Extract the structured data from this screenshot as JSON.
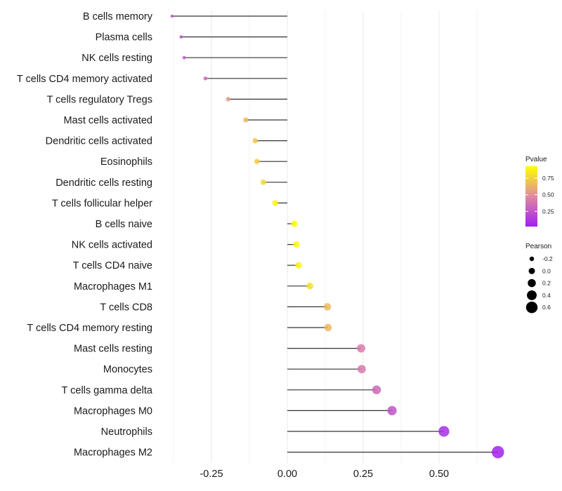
{
  "chart_data": {
    "type": "lollipop",
    "title": "",
    "xlabel": "",
    "ylabel": "",
    "xlim": [
      -0.38,
      0.7
    ],
    "x_ticks": [
      -0.25,
      0.0,
      0.25,
      0.5
    ],
    "x_tick_labels": [
      "-0.25",
      "0.00",
      "0.25",
      "0.50"
    ],
    "grid": true,
    "categories": [
      "B cells memory",
      "Plasma cells",
      "NK cells resting",
      "T cells CD4 memory activated",
      "T cells regulatory  Tregs ",
      "Mast cells activated",
      "Dendritic cells activated",
      "Eosinophils",
      "Dendritic cells resting",
      "T cells follicular helper",
      "B cells naive",
      "NK cells activated",
      "T cells CD4 naive",
      "Macrophages M1",
      "T cells CD8",
      "T cells CD4 memory resting",
      "Mast cells resting",
      "Monocytes",
      "T cells gamma delta",
      "Macrophages M0",
      "Neutrophils",
      "Macrophages M2"
    ],
    "pearson": [
      -0.38,
      -0.35,
      -0.34,
      -0.27,
      -0.195,
      -0.137,
      -0.106,
      -0.1,
      -0.079,
      -0.04,
      0.023,
      0.03,
      0.037,
      0.074,
      0.132,
      0.134,
      0.243,
      0.245,
      0.294,
      0.345,
      0.516,
      0.694
    ],
    "pvalue": [
      0.2,
      0.22,
      0.24,
      0.35,
      0.55,
      0.66,
      0.72,
      0.73,
      0.78,
      0.9,
      0.92,
      0.91,
      0.88,
      0.8,
      0.66,
      0.65,
      0.41,
      0.41,
      0.33,
      0.24,
      0.08,
      0.03
    ],
    "legend": {
      "color": {
        "title": "Pvalue",
        "range": [
          0.02,
          0.93
        ],
        "ticks": [
          0.75,
          0.5,
          0.25
        ],
        "tick_labels": [
          "0.75",
          "0.50",
          "0.25"
        ],
        "low_color": "#A020F0",
        "mid_color": "#E08AA0",
        "high_color": "#FFFF00",
        "placement": "right"
      },
      "size": {
        "title": "Pearson",
        "values": [
          -0.2,
          0.0,
          0.2,
          0.4,
          0.6
        ],
        "labels": [
          "-0.2",
          "0.0",
          "0.2",
          "0.4",
          "0.6"
        ],
        "placement": "right"
      }
    },
    "segment_color": "#000000",
    "grid_color": "#EBEBEB"
  }
}
